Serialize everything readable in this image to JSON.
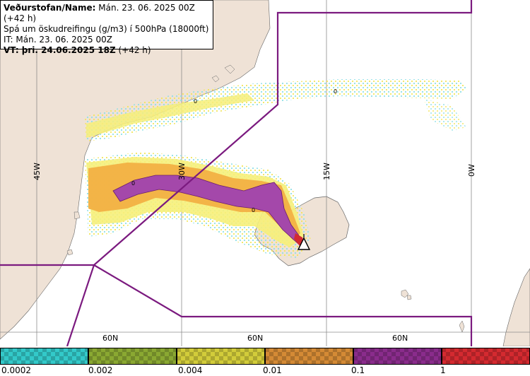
{
  "info": {
    "line1_bold": "Veðurstofan/Name:",
    "line1_rest": " Mán. 23. 06. 2025 00Z (+42 h)",
    "line2": "Spá um öskudreifingu (g/m3) í 500hPa (18000ft)",
    "line3": "IT: Mán. 23. 06. 2025 00Z",
    "line4_bold": "VT: þri. 24.06.2025 18Z",
    "line4_rest": " (+42 h)"
  },
  "map": {
    "meridian_labels": [
      "45W",
      "30W",
      "15W",
      "0W"
    ],
    "parallel_labels": [
      "60N",
      "60N",
      "60N"
    ],
    "contour_labels": [
      "0",
      "0",
      "0",
      "0"
    ],
    "colors": {
      "sea": "#ffffff",
      "land": "#efe2d6",
      "boundary": "#7b1a7f",
      "grid": "#8c8c8c"
    },
    "icons": [
      "volcano-icon"
    ]
  },
  "legend": {
    "tick_labels": [
      "0.0002",
      "0.002",
      "0.004",
      "0.01",
      "0.1",
      "1"
    ],
    "colors": [
      "#33c9c9",
      "#8aa832",
      "#d2cc3a",
      "#d48a35",
      "#8a2c8c",
      "#d42a30"
    ]
  }
}
